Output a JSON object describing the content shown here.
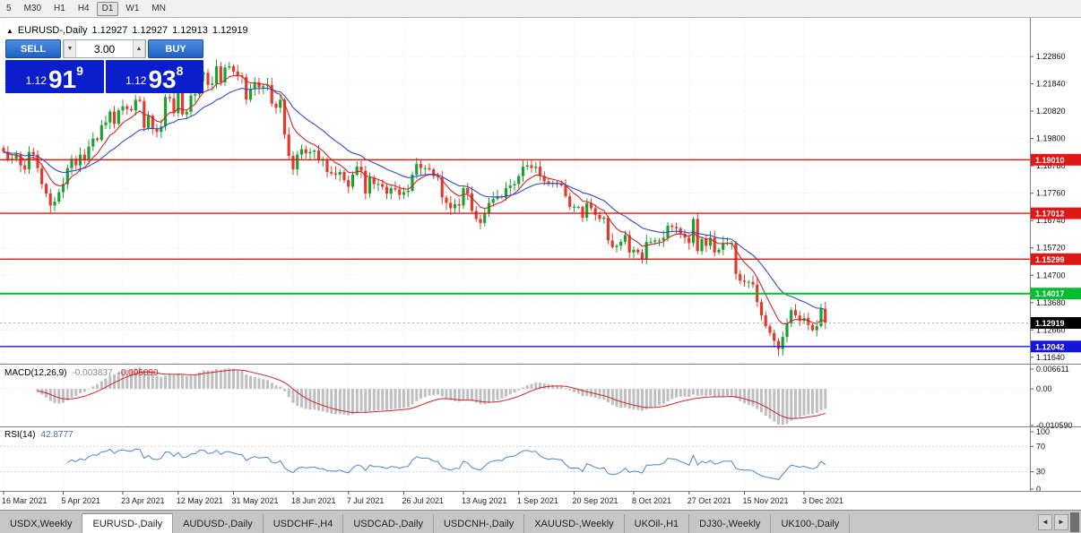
{
  "window": {
    "timeframes": [
      "5",
      "M30",
      "H1",
      "H4",
      "D1",
      "W1",
      "MN"
    ],
    "active_timeframe": "D1"
  },
  "header": {
    "direction_icon": "▲",
    "symbol": "EURUSD-,Daily",
    "open": "1.12927",
    "high": "1.12927",
    "low": "1.12913",
    "close": "1.12919"
  },
  "trade_panel": {
    "sell_label": "SELL",
    "buy_label": "BUY",
    "volume": "3.00",
    "volume_down_icon": "▼",
    "volume_up_icon": "▲",
    "sell_price": {
      "small": "1.12",
      "big": "91",
      "sup": "9"
    },
    "buy_price": {
      "small": "1.12",
      "big": "93",
      "sup": "8"
    },
    "price_bg_color": "#0b1ecb",
    "button_color": "#2b6fd4"
  },
  "price_axis": {
    "labels": [
      "1.22860",
      "1.21840",
      "1.20820",
      "1.19800",
      "1.18780",
      "1.17760",
      "1.16740",
      "1.15720",
      "1.14700",
      "1.13680",
      "1.12660",
      "1.11640"
    ]
  },
  "levels": [
    {
      "price": 1.1901,
      "label": "1.19010",
      "color": "#e01717",
      "line_width": 1.4,
      "type": "resistance"
    },
    {
      "price": 1.17012,
      "label": "1.17012",
      "color": "#e01717",
      "line_width": 1.4,
      "type": "resistance"
    },
    {
      "price": 1.15299,
      "label": "1.15299",
      "color": "#e01717",
      "line_width": 1.4,
      "type": "resistance"
    },
    {
      "price": 1.14017,
      "label": "1.14017",
      "color": "#00bf2f",
      "line_width": 2,
      "type": "level"
    },
    {
      "price": 1.12042,
      "label": "1.12042",
      "color": "#1414dc",
      "line_width": 1.4,
      "type": "support"
    }
  ],
  "current_price": {
    "value": 1.12919,
    "label": "1.12919",
    "color": "#000000"
  },
  "chart_data": {
    "type": "candlestick",
    "symbol": "EURUSD",
    "timeframe": "Daily",
    "up_color": "#1ba133",
    "down_color": "#e23b2e",
    "ma_fast_color": "#cf2525",
    "ma_slow_color": "#2f4cc4",
    "y_range": [
      1.114,
      1.243
    ],
    "closes": [
      1.193,
      1.19,
      1.1905,
      1.192,
      1.188,
      1.1865,
      1.193,
      1.192,
      1.187,
      1.181,
      1.1775,
      1.173,
      1.1745,
      1.178,
      1.181,
      1.187,
      1.1905,
      1.188,
      1.192,
      1.19,
      1.195,
      1.198,
      1.1975,
      1.203,
      1.204,
      1.208,
      1.2035,
      1.2085,
      1.21,
      1.209,
      1.2085,
      1.2125,
      1.212,
      1.202,
      1.2065,
      1.2015,
      1.2005,
      1.2025,
      1.2135,
      1.213,
      1.2075,
      1.215,
      1.207,
      1.208,
      1.214,
      1.2145,
      1.222,
      1.2225,
      1.218,
      1.2185,
      1.225,
      1.219,
      1.2245,
      1.225,
      1.223,
      1.2215,
      1.221,
      1.2125,
      1.2165,
      1.219,
      1.217,
      1.2175,
      1.218,
      1.211,
      1.2095,
      1.2125,
      1.1995,
      1.1915,
      1.1865,
      1.192,
      1.194,
      1.1925,
      1.193,
      1.1935,
      1.19,
      1.19,
      1.1855,
      1.185,
      1.1845,
      1.1855,
      1.1825,
      1.18,
      1.1845,
      1.1875,
      1.186,
      1.1775,
      1.1835,
      1.181,
      1.181,
      1.18,
      1.1775,
      1.1795,
      1.179,
      1.177,
      1.178,
      1.1785,
      1.1845,
      1.1885,
      1.187,
      1.187,
      1.1865,
      1.184,
      1.1835,
      1.176,
      1.174,
      1.172,
      1.1735,
      1.173,
      1.1795,
      1.1775,
      1.171,
      1.168,
      1.1665,
      1.17,
      1.174,
      1.1755,
      1.1765,
      1.176,
      1.1795,
      1.1805,
      1.181,
      1.184,
      1.1875,
      1.188,
      1.187,
      1.1875,
      1.184,
      1.182,
      1.181,
      1.1815,
      1.181,
      1.1805,
      1.1765,
      1.1725,
      1.1725,
      1.1725,
      1.1685,
      1.174,
      1.172,
      1.1695,
      1.168,
      1.1685,
      1.16,
      1.1575,
      1.158,
      1.1595,
      1.162,
      1.1555,
      1.1565,
      1.1555,
      1.153,
      1.1595,
      1.1595,
      1.16,
      1.16,
      1.161,
      1.1655,
      1.165,
      1.1645,
      1.1625,
      1.161,
      1.159,
      1.168,
      1.156,
      1.1605,
      1.158,
      1.161,
      1.1555,
      1.1565,
      1.159,
      1.159,
      1.159,
      1.1475,
      1.145,
      1.1445,
      1.1445,
      1.1435,
      1.137,
      1.132,
      1.128,
      1.1255,
      1.1225,
      1.1195,
      1.124,
      1.129,
      1.134,
      1.132,
      1.13,
      1.131,
      1.1285,
      1.1265,
      1.128,
      1.1345,
      1.12919
    ],
    "x_labels": [
      "16 Mar 2021",
      "5 Apr 2021",
      "23 Apr 2021",
      "12 May 2021",
      "31 May 2021",
      "18 Jun 2021",
      "7 Jul 2021",
      "26 Jul 2021",
      "13 Aug 2021",
      "1 Sep 2021",
      "20 Sep 2021",
      "8 Oct 2021",
      "27 Oct 2021",
      "15 Nov 2021",
      "3 Dec 2021"
    ],
    "x_label_indices": [
      0,
      14,
      28,
      41,
      54,
      68,
      81,
      94,
      108,
      121,
      134,
      148,
      161,
      174,
      188
    ]
  },
  "indicators": {
    "macd": {
      "name": "MACD(12,26,9)",
      "value_main": "-0.003837",
      "value_signal": "-0.005090",
      "axis": [
        "0.006611",
        "0.00",
        "-0.010590"
      ],
      "range": [
        -0.01059,
        0.006611
      ],
      "histogram_color": "#bfbfbf",
      "signal_color": "#cf2525"
    },
    "rsi": {
      "name": "RSI(14)",
      "value": "42.8777",
      "axis": [
        "100",
        "70",
        "30",
        "0"
      ],
      "levels": [
        70,
        30
      ],
      "line_color": "#4a86c8"
    }
  },
  "tabs": {
    "items": [
      "USDX,Weekly",
      "EURUSD-,Daily",
      "AUDUSD-,Daily",
      "USDCHF-,H4",
      "USDCAD-,Daily",
      "USDCNH-,Daily",
      "XAUUSD-,Weekly",
      "UKOil-,H1",
      "DJ30-,Weekly",
      "UK100-,Daily"
    ],
    "active": "EURUSD-,Daily",
    "scroll_left_icon": "◄",
    "scroll_right_icon": "►"
  }
}
